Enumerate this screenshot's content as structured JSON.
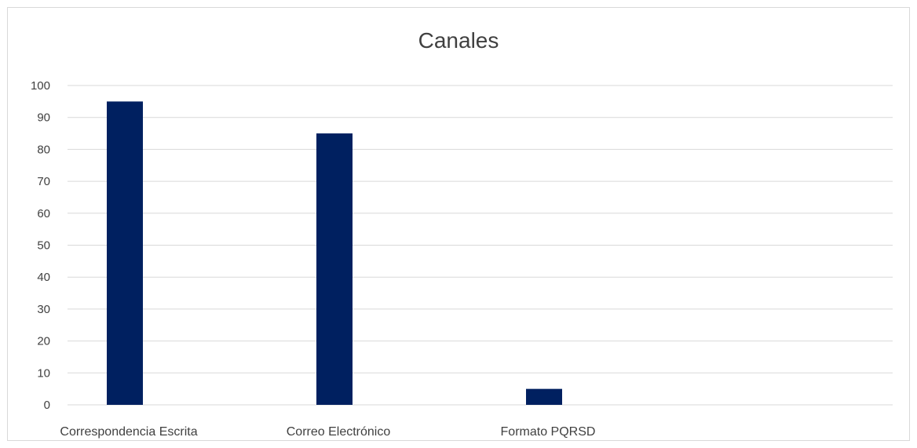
{
  "chart_data": {
    "type": "bar",
    "title": "Canales",
    "categories": [
      "Correspondencia Escrita",
      "Correo Electrónico",
      "Formato PQRSD"
    ],
    "values": [
      95,
      85,
      5
    ],
    "ylim": [
      0,
      100
    ],
    "yticks": [
      0,
      10,
      20,
      30,
      40,
      50,
      60,
      70,
      80,
      90,
      100
    ],
    "grid": true,
    "bar_color": "#002060",
    "grid_color": "#d9d9d9"
  }
}
